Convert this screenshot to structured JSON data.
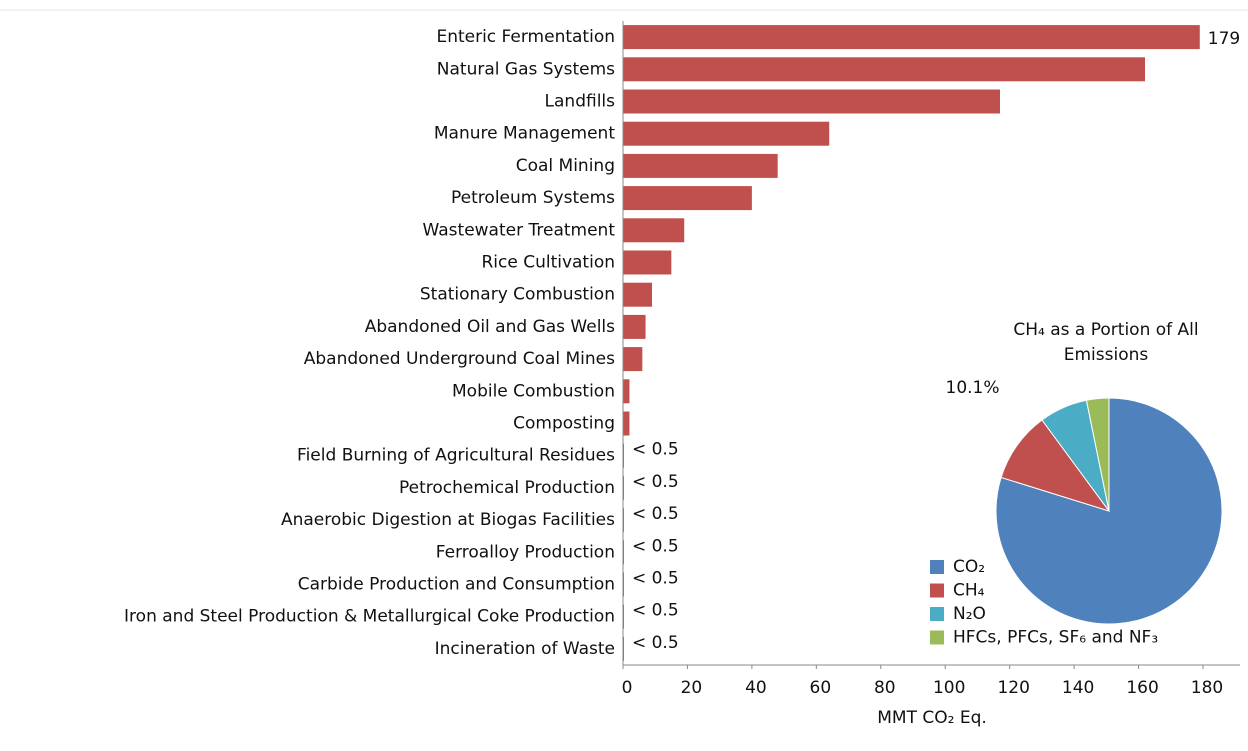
{
  "chart_data": [
    {
      "type": "bar",
      "orientation": "horizontal",
      "xlabel": "MMT CO₂ Eq.",
      "color": "#c0504d",
      "categories": [
        "Enteric Fermentation",
        "Natural Gas Systems",
        "Landfills",
        "Manure Management",
        "Coal Mining",
        "Petroleum Systems",
        "Wastewater Treatment",
        "Rice Cultivation",
        "Stationary Combustion",
        "Abandoned Oil and Gas Wells",
        "Abandoned Underground Coal Mines",
        "Mobile Combustion",
        "Composting",
        "Field Burning of Agricultural Residues",
        "Petrochemical Production",
        "Anaerobic Digestion at Biogas Facilities",
        "Ferroalloy Production",
        "Carbide Production and Consumption",
        "Iron and Steel Production & Metallurgical Coke Production",
        "Incineration of Waste"
      ],
      "values": [
        179,
        162,
        117,
        64,
        48,
        40,
        19,
        15,
        9,
        7,
        6,
        2,
        2,
        0.3,
        0.3,
        0.3,
        0.3,
        0.3,
        0.3,
        0.3
      ],
      "value_labels": [
        "179",
        null,
        null,
        null,
        null,
        null,
        null,
        null,
        null,
        null,
        null,
        null,
        null,
        "< 0.5",
        "< 0.5",
        "< 0.5",
        "< 0.5",
        "< 0.5",
        "< 0.5",
        "< 0.5"
      ],
      "xlim": [
        0,
        180
      ],
      "xticks": [
        0,
        20,
        40,
        60,
        80,
        100,
        120,
        140,
        160,
        180
      ]
    },
    {
      "type": "pie",
      "title": "CH₄ as a Portion of All Emissions",
      "categories": [
        "CO₂",
        "CH₄",
        "N₂O",
        "HFCs, PFCs, SF₆ and NF₃"
      ],
      "values": [
        79.8,
        10.1,
        6.9,
        3.2
      ],
      "value_labels": [
        null,
        "10.1%",
        null,
        null
      ],
      "colors": [
        "#4f81bd",
        "#c0504d",
        "#4bacc6",
        "#9bbb59"
      ]
    }
  ]
}
